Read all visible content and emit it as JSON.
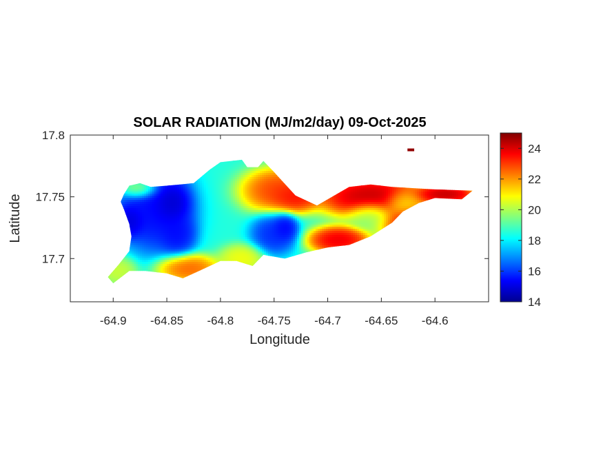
{
  "chart_data": {
    "type": "heatmap",
    "title": "SOLAR RADIATION (MJ/m2/day) 09-Oct-2025",
    "xlabel": "Longitude",
    "ylabel": "Latitude",
    "xlim": [
      -64.94,
      -64.55
    ],
    "ylim": [
      17.665,
      17.8
    ],
    "x_ticks": [
      -64.9,
      -64.85,
      -64.8,
      -64.75,
      -64.7,
      -64.65,
      -64.6
    ],
    "x_tick_labels": [
      "-64.9",
      "-64.85",
      "-64.8",
      "-64.75",
      "-64.7",
      "-64.65",
      "-64.6"
    ],
    "y_ticks": [
      17.7,
      17.75,
      17.8
    ],
    "y_tick_labels": [
      "17.7",
      "17.75",
      "17.8"
    ],
    "colorbar": {
      "colormap": "jet",
      "range": [
        14,
        25
      ],
      "ticks": [
        14,
        16,
        18,
        20,
        22,
        24
      ],
      "tick_labels": [
        "14",
        "16",
        "18",
        "20",
        "22",
        "24"
      ]
    },
    "island_outline": [
      [
        -64.9,
        17.68
      ],
      [
        -64.885,
        17.69
      ],
      [
        -64.87,
        17.69
      ],
      [
        -64.85,
        17.688
      ],
      [
        -64.835,
        17.684
      ],
      [
        -64.82,
        17.69
      ],
      [
        -64.8,
        17.698
      ],
      [
        -64.785,
        17.698
      ],
      [
        -64.77,
        17.694
      ],
      [
        -64.76,
        17.703
      ],
      [
        -64.74,
        17.7
      ],
      [
        -64.72,
        17.705
      ],
      [
        -64.7,
        17.709
      ],
      [
        -64.68,
        17.711
      ],
      [
        -64.66,
        17.718
      ],
      [
        -64.64,
        17.729
      ],
      [
        -64.63,
        17.738
      ],
      [
        -64.615,
        17.745
      ],
      [
        -64.6,
        17.749
      ],
      [
        -64.575,
        17.748
      ],
      [
        -64.565,
        17.755
      ],
      [
        -64.6,
        17.756
      ],
      [
        -64.62,
        17.757
      ],
      [
        -64.64,
        17.758
      ],
      [
        -64.66,
        17.76
      ],
      [
        -64.68,
        17.758
      ],
      [
        -64.69,
        17.753
      ],
      [
        -64.71,
        17.743
      ],
      [
        -64.73,
        17.751
      ],
      [
        -64.75,
        17.77
      ],
      [
        -64.76,
        17.779
      ],
      [
        -64.765,
        17.774
      ],
      [
        -64.775,
        17.774
      ],
      [
        -64.78,
        17.78
      ],
      [
        -64.8,
        17.778
      ],
      [
        -64.81,
        17.772
      ],
      [
        -64.825,
        17.761
      ],
      [
        -64.85,
        17.759
      ],
      [
        -64.865,
        17.758
      ],
      [
        -64.875,
        17.761
      ],
      [
        -64.885,
        17.759
      ],
      [
        -64.89,
        17.752
      ],
      [
        -64.893,
        17.746
      ],
      [
        -64.89,
        17.74
      ],
      [
        -64.885,
        17.728
      ],
      [
        -64.883,
        17.718
      ],
      [
        -64.885,
        17.706
      ],
      [
        -64.895,
        17.695
      ],
      [
        -64.905,
        17.685
      ]
    ],
    "islet_outline": [
      [
        -64.625,
        17.788
      ],
      [
        -64.62,
        17.788
      ]
    ],
    "value_field": {
      "background": 18.5,
      "features": [
        {
          "lon": -64.86,
          "lat": 17.74,
          "value": 15.0,
          "spread_lon": 0.025,
          "spread_lat": 0.025
        },
        {
          "lon": -64.885,
          "lat": 17.73,
          "value": 14.6,
          "spread_lon": 0.01,
          "spread_lat": 0.01
        },
        {
          "lon": -64.845,
          "lat": 17.745,
          "value": 14.4,
          "spread_lon": 0.012,
          "spread_lat": 0.012
        },
        {
          "lon": -64.84,
          "lat": 17.72,
          "value": 15.2,
          "spread_lon": 0.012,
          "spread_lat": 0.012
        },
        {
          "lon": -64.75,
          "lat": 17.72,
          "value": 15.5,
          "spread_lon": 0.015,
          "spread_lat": 0.012
        },
        {
          "lon": -64.74,
          "lat": 17.725,
          "value": 15.0,
          "spread_lon": 0.008,
          "spread_lat": 0.008
        },
        {
          "lon": -64.66,
          "lat": 17.75,
          "value": 25.0,
          "spread_lon": 0.035,
          "spread_lat": 0.012
        },
        {
          "lon": -64.745,
          "lat": 17.755,
          "value": 23.5,
          "spread_lon": 0.025,
          "spread_lat": 0.013
        },
        {
          "lon": -64.73,
          "lat": 17.75,
          "value": 24.0,
          "spread_lon": 0.015,
          "spread_lat": 0.008
        },
        {
          "lon": -64.69,
          "lat": 17.715,
          "value": 24.5,
          "spread_lon": 0.02,
          "spread_lat": 0.008
        },
        {
          "lon": -64.625,
          "lat": 17.73,
          "value": 24.0,
          "spread_lon": 0.02,
          "spread_lat": 0.01
        },
        {
          "lon": -64.59,
          "lat": 17.752,
          "value": 25.0,
          "spread_lon": 0.02,
          "spread_lat": 0.006
        },
        {
          "lon": -64.83,
          "lat": 17.692,
          "value": 23.0,
          "spread_lon": 0.02,
          "spread_lat": 0.008
        },
        {
          "lon": -64.78,
          "lat": 17.7,
          "value": 21.0,
          "spread_lon": 0.015,
          "spread_lat": 0.008
        },
        {
          "lon": -64.875,
          "lat": 17.757,
          "value": 21.0,
          "spread_lon": 0.012,
          "spread_lat": 0.006
        },
        {
          "lon": -64.895,
          "lat": 17.69,
          "value": 20.5,
          "spread_lon": 0.012,
          "spread_lat": 0.008
        },
        {
          "lon": -64.66,
          "lat": 17.735,
          "value": 19.5,
          "spread_lon": 0.015,
          "spread_lat": 0.008
        },
        {
          "lon": -64.63,
          "lat": 17.745,
          "value": 20.5,
          "spread_lon": 0.012,
          "spread_lat": 0.008
        }
      ]
    },
    "islet_value": 24.8
  }
}
